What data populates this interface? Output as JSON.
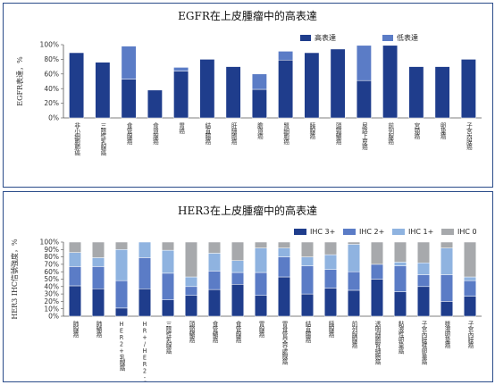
{
  "chart_data": [
    {
      "type": "bar",
      "stacked": true,
      "title": "EGFR在上皮腫瘤中的高表達",
      "ylabel": "EGFR表達，%",
      "ylim": [
        0,
        100
      ],
      "yticks": [
        "0%",
        "20%",
        "40%",
        "60%",
        "80%",
        "100%"
      ],
      "legend_position": "top-right",
      "categories": [
        "非小細胞肺癌",
        "三陰性乳腺癌",
        "食管腺癌",
        "食道腺癌",
        "胃癌",
        "結直腸癌",
        "肝細胞癌",
        "膽道癌",
        "腎細胞癌",
        "胰腺癌",
        "頭頸鱗癌",
        "尿路上皮癌",
        "前列腺癌",
        "宮頸癌",
        "卵巢癌",
        "子宮內膜癌"
      ],
      "series": [
        {
          "name": "高表達",
          "color": "#1f3d8c",
          "values": [
            89,
            76,
            53,
            38,
            64,
            80,
            70,
            39,
            79,
            89,
            94,
            51,
            99,
            70,
            70,
            80
          ]
        },
        {
          "name": "低表達",
          "color": "#5b7cc6",
          "values": [
            0,
            0,
            45,
            0,
            5,
            0,
            0,
            21,
            12,
            0,
            0,
            48,
            0,
            0,
            0,
            0
          ]
        }
      ]
    },
    {
      "type": "bar",
      "stacked": true,
      "title": "HER3在上皮腫瘤中的高表達",
      "ylabel": "HER3 IHC信號強度，%",
      "ylim": [
        0,
        100
      ],
      "yticks": [
        "0%",
        "10%",
        "20%",
        "30%",
        "40%",
        "50%",
        "60%",
        "70%",
        "80%",
        "90%",
        "100%"
      ],
      "legend_position": "top-right",
      "categories": [
        "肺腺癌",
        "肺鱗癌",
        "HER2+乳腺癌",
        "HR+/HER2-乳腺癌",
        "三陰性乳腺癌",
        "頭頸鱗癌",
        "食管鱗癌",
        "食管腺癌",
        "胃腺癌",
        "胃食管交界處腺癌",
        "結直腸癌",
        "胰腺癌",
        "前列腺腺癌",
        "透明細胞腎細胞癌",
        "黏液性卵巢癌",
        "子宮內膜樣卵巢癌",
        "漿液卵巢癌",
        "子宮內膜癌"
      ],
      "series": [
        {
          "name": "IHC 3+",
          "color": "#1f3d8c",
          "values": [
            41,
            37,
            11,
            37,
            22,
            28,
            36,
            43,
            28,
            53,
            30,
            38,
            35,
            50,
            33,
            40,
            20,
            27
          ]
        },
        {
          "name": "IHC 2+",
          "color": "#5b7cc6",
          "values": [
            26,
            30,
            37,
            42,
            36,
            12,
            25,
            16,
            31,
            27,
            38,
            25,
            25,
            20,
            35,
            16,
            36,
            21
          ]
        },
        {
          "name": "IHC 1+",
          "color": "#8fb3e0",
          "values": [
            19,
            12,
            42,
            21,
            31,
            13,
            24,
            16,
            33,
            12,
            12,
            20,
            37,
            0,
            5,
            16,
            36,
            5
          ]
        },
        {
          "name": "IHC 0",
          "color": "#a7a9ac",
          "values": [
            14,
            21,
            10,
            0,
            11,
            47,
            15,
            25,
            8,
            8,
            20,
            17,
            3,
            30,
            27,
            28,
            8,
            47
          ]
        }
      ]
    }
  ]
}
